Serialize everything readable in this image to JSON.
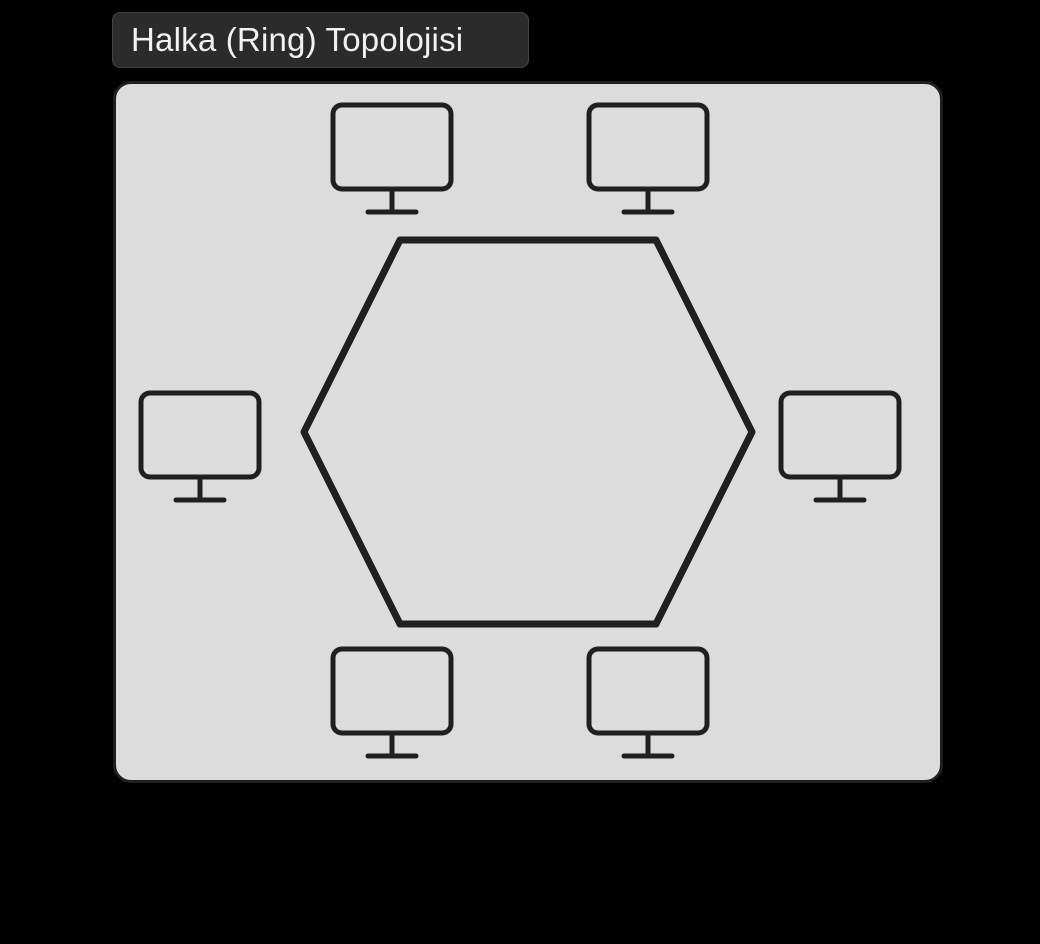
{
  "title": "Halka (Ring) Topolojisi",
  "diagram": {
    "topology": "ring",
    "shape": "hexagon",
    "nodes": [
      {
        "id": "top-left",
        "icon": "computer-monitor-icon"
      },
      {
        "id": "top-right",
        "icon": "computer-monitor-icon"
      },
      {
        "id": "right",
        "icon": "computer-monitor-icon"
      },
      {
        "id": "bottom-right",
        "icon": "computer-monitor-icon"
      },
      {
        "id": "bottom-left",
        "icon": "computer-monitor-icon"
      },
      {
        "id": "left",
        "icon": "computer-monitor-icon"
      }
    ]
  },
  "colors": {
    "background": "#000000",
    "panel": "#dcdcdc",
    "line": "#1f1f1f",
    "title_bg": "#2b2b2b",
    "title_text": "#f2f2f2"
  }
}
